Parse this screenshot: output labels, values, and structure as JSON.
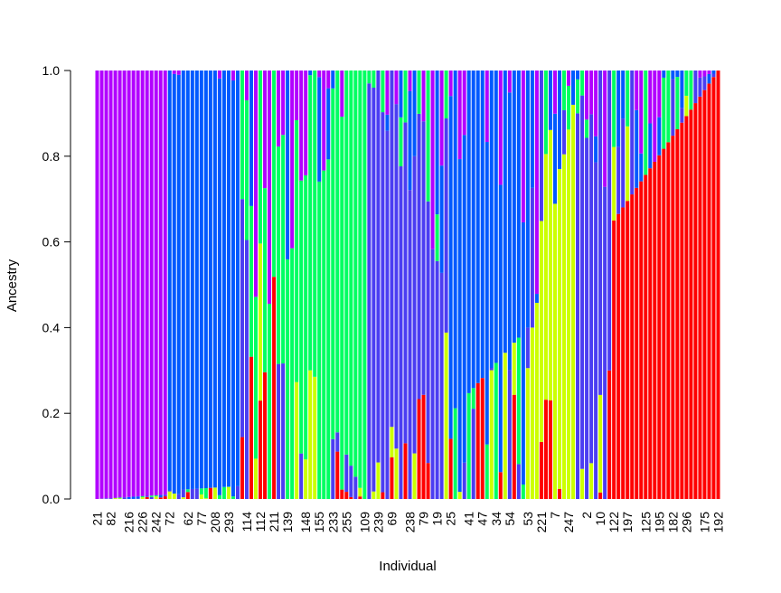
{
  "chart_data": {
    "type": "bar",
    "stacked": true,
    "xlabel": "Individual",
    "ylabel": "Ancestry",
    "ylim": [
      0,
      1
    ],
    "yticks": [
      0.0,
      0.2,
      0.4,
      0.6,
      0.8,
      1.0
    ],
    "ytick_labels": [
      "0.0",
      "0.2",
      "0.4",
      "0.6",
      "0.8",
      "1.0"
    ],
    "n_individuals": 138,
    "x_tick_labels": [
      "21",
      "82",
      "216",
      "226",
      "242",
      "72",
      "62",
      "77",
      "208",
      "293",
      "114",
      "112",
      "211",
      "139",
      "148",
      "155",
      "233",
      "255",
      "109",
      "239",
      "69",
      "238",
      "79",
      "19",
      "25",
      "41",
      "47",
      "34",
      "54",
      "53",
      "221",
      "7",
      "247",
      "2",
      "10",
      "122",
      "197",
      "125",
      "195",
      "182",
      "296",
      "175",
      "192"
    ],
    "components": [
      {
        "key": "purple",
        "color": "#b200ff"
      },
      {
        "key": "blue",
        "color": "#0059ff"
      },
      {
        "key": "green",
        "color": "#00ff62"
      },
      {
        "key": "indigo",
        "color": "#4b3df2"
      },
      {
        "key": "yellow",
        "color": "#ccff00"
      },
      {
        "key": "red",
        "color": "#ff0000"
      }
    ],
    "group_segments": [
      {
        "from": 1,
        "to": 16,
        "dominant": "purple",
        "start": 1.0,
        "end": 0.99
      },
      {
        "from": 17,
        "to": 32,
        "dominant": "blue",
        "start": 0.98,
        "end": 0.97
      },
      {
        "from": 33,
        "to": 60,
        "dominant": "green",
        "start": 0.3,
        "end": 1.0
      },
      {
        "from": 61,
        "to": 78,
        "dominant": "indigo",
        "start": 0.97,
        "end": 0.5
      },
      {
        "from": 79,
        "to": 96,
        "dominant": "blue",
        "start": 0.8,
        "end": 0.6
      },
      {
        "from": 97,
        "to": 106,
        "dominant": "yellow",
        "start": 0.4,
        "end": 0.92
      },
      {
        "from": 107,
        "to": 114,
        "dominant": "indigo",
        "start": 0.9,
        "end": 0.7
      },
      {
        "from": 115,
        "to": 138,
        "dominant": "red",
        "start": 0.65,
        "end": 1.0
      }
    ]
  }
}
